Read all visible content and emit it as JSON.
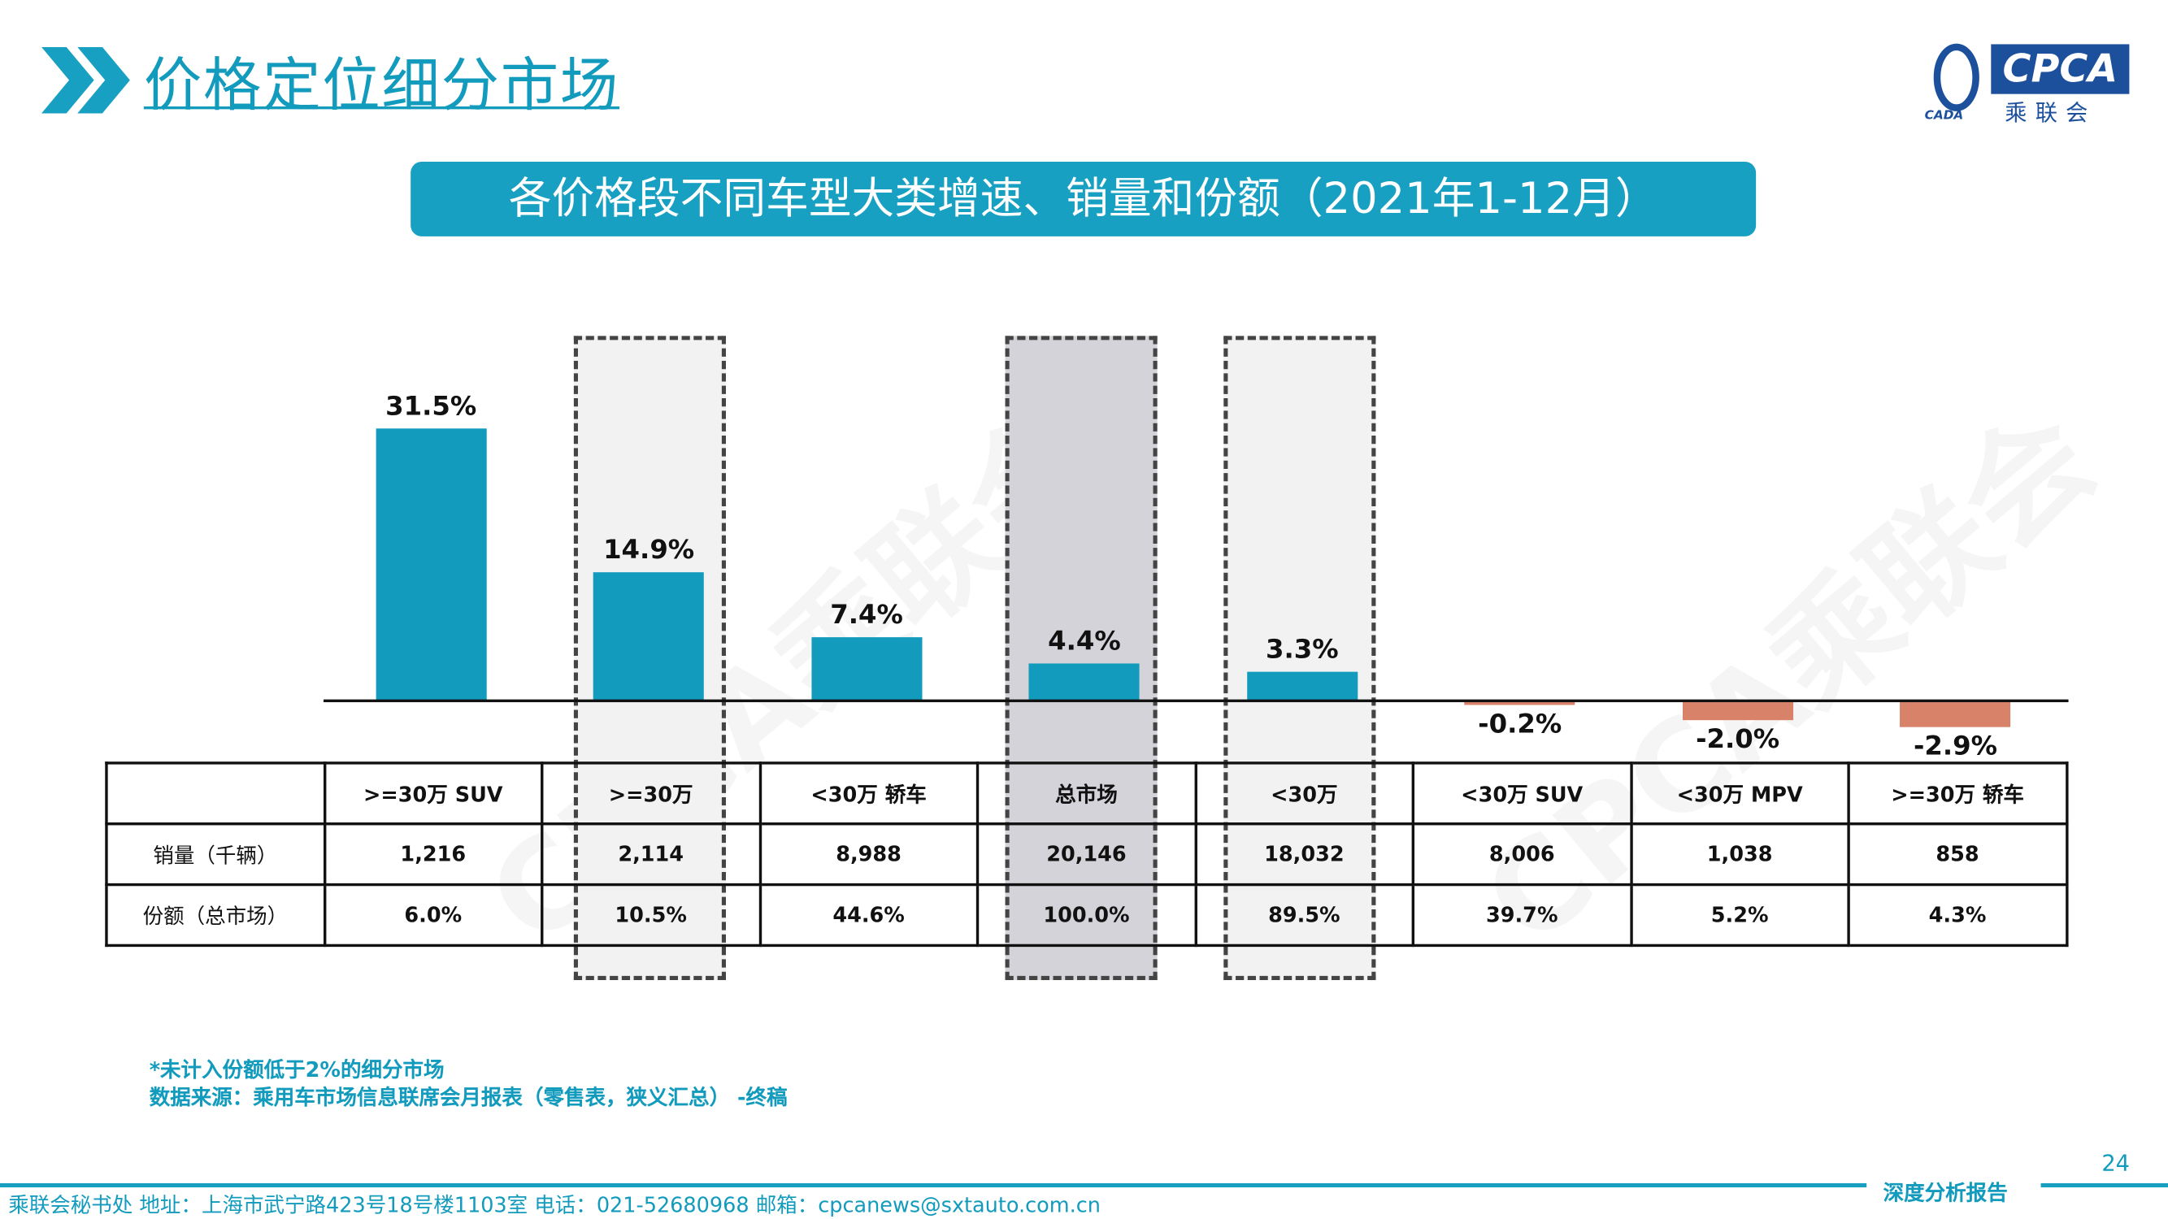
{
  "header": {
    "title": "价格定位细分市场",
    "logo_text": "CPCA",
    "logo_sub": "乘联会",
    "logo_small": "CADA"
  },
  "subtitle": "各价格段不同车型大类增速、销量和份额（2021年1-12月）",
  "watermark": "CPCA乘联会",
  "colors": {
    "accent": "#18a0c2",
    "positive_bar": "#139bbd",
    "negative_bar": "#d9826a",
    "highlight_fill": "#d4d3d9",
    "highlight_fill_light": "#f2f2f2"
  },
  "chart_data": {
    "type": "bar",
    "categories": [
      ">=30万 SUV",
      ">=30万",
      "<30万 轿车",
      "总市场",
      "<30万",
      "<30万 SUV",
      "<30万 MPV",
      ">=30万 轿车"
    ],
    "values": [
      31.5,
      14.9,
      7.4,
      4.4,
      3.3,
      -0.2,
      -2.0,
      -2.9
    ],
    "value_labels": [
      "31.5%",
      "14.9%",
      "7.4%",
      "4.4%",
      "3.3%",
      "-0.2%",
      "-2.0%",
      "-2.9%"
    ],
    "highlighted": [
      ">=30万",
      "总市场",
      "<30万"
    ],
    "ylim": [
      -3,
      32
    ]
  },
  "table": {
    "rows": [
      {
        "label": "销量（千辆）",
        "values": [
          "1,216",
          "2,114",
          "8,988",
          "20,146",
          "18,032",
          "8,006",
          "1,038",
          "858"
        ]
      },
      {
        "label": "份额（总市场）",
        "values": [
          "6.0%",
          "10.5%",
          "44.6%",
          "100.0%",
          "89.5%",
          "39.7%",
          "5.2%",
          "4.3%"
        ]
      }
    ]
  },
  "notes": [
    "*未计入份额低于2%的细分市场",
    "数据来源：乘用车市场信息联席会月报表（零售表，狭义汇总） -终稿"
  ],
  "footer": {
    "text": "乘联会秘书处   地址：上海市武宁路423号18号楼1103室  电话：021-52680968   邮箱：cpcanews@sxtauto.com.cn",
    "tag": "深度分析报告",
    "page": "24"
  }
}
